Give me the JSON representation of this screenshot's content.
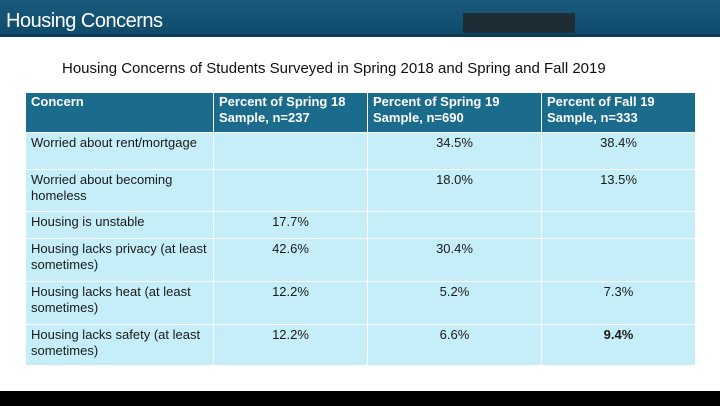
{
  "slide": {
    "title": "Housing Concerns",
    "subtitle": "Housing Concerns of Students Surveyed in Spring 2018 and Spring and Fall 2019"
  },
  "table": {
    "headers": [
      "Concern",
      "Percent of Spring 18 Sample, n=237",
      "Percent of Spring 19 Sample, n=690",
      "Percent of Fall 19 Sample, n=333"
    ],
    "rows": [
      [
        "Worried about rent/mortgage",
        "",
        "34.5%",
        "38.4%"
      ],
      [
        "Worried about becoming homeless",
        "",
        "18.0%",
        "13.5%"
      ],
      [
        "Housing is unstable",
        "17.7%",
        "",
        ""
      ],
      [
        "Housing lacks privacy (at least sometimes)",
        "42.6%",
        "30.4%",
        ""
      ],
      [
        "Housing lacks heat (at least sometimes)",
        "12.2%",
        "5.2%",
        "7.3%"
      ],
      [
        "Housing lacks safety (at least sometimes)",
        "12.2%",
        "6.6%",
        "9.4%"
      ]
    ]
  },
  "colors": {
    "header_band": "#0d4a6a",
    "table_header": "#1b6b8c",
    "table_cell": "#c5eef9"
  }
}
